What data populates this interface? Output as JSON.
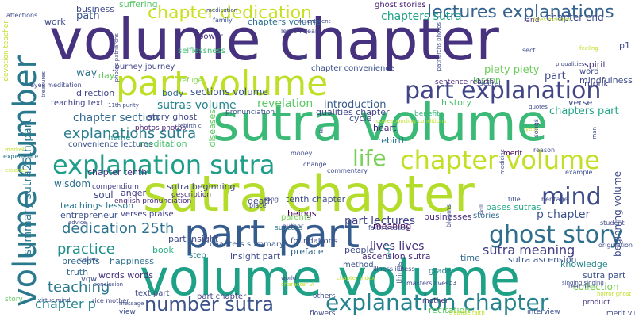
{
  "words": [
    {
      "text": "volume chapter",
      "color": "#46327e"
    },
    {
      "text": "sutra volume",
      "color": "#3aba76"
    },
    {
      "text": "sutra chapter",
      "color": "#b3dc2b"
    },
    {
      "text": "volume volume",
      "color": "#1fa187"
    },
    {
      "text": "part volume",
      "color": "#bddf26"
    },
    {
      "text": "part part",
      "color": "#365c8d"
    },
    {
      "text": "volume number",
      "color": "#2a788e"
    },
    {
      "text": "explanation sutra",
      "color": "#1f9e89"
    },
    {
      "text": "part explanation",
      "color": "#414487"
    },
    {
      "text": "chapter volume",
      "color": "#c2df23"
    },
    {
      "text": "ghost story",
      "color": "#2e6f8e"
    },
    {
      "text": "explanation chapter",
      "color": "#25838e"
    },
    {
      "text": "chapter dedication",
      "color": "#c8e020"
    },
    {
      "text": "lectures explanations",
      "color": "#33628d"
    },
    {
      "text": "number sutra",
      "color": "#3b528b"
    },
    {
      "text": "mind",
      "color": "#3e4989"
    },
    {
      "text": "life",
      "color": "#75d054"
    },
    {
      "text": "sutra meaning",
      "color": "#433e85"
    },
    {
      "text": "dedication 25th",
      "color": "#2c728e"
    },
    {
      "text": "explanations sutra",
      "color": "#287d8e"
    },
    {
      "text": "practice",
      "color": "#21918c"
    },
    {
      "text": "teaching",
      "color": "#2a788e"
    },
    {
      "text": "chapter p",
      "color": "#23888e"
    },
    {
      "text": "p chapter",
      "color": "#3b528b"
    },
    {
      "text": "summary sutra25th part",
      "color": "#2a788e"
    },
    {
      "text": "sutras volume",
      "color": "#25848e"
    },
    {
      "text": "chapter section",
      "color": "#31688e"
    },
    {
      "text": "part lectures",
      "color": "#424086"
    },
    {
      "text": "lives lives",
      "color": "#46307e"
    },
    {
      "text": "ascension sutra",
      "color": "#472d7b"
    },
    {
      "text": "sutra ascension",
      "color": "#39558c"
    },
    {
      "text": "chapters sutra",
      "color": "#1fa088"
    },
    {
      "text": "chapter end",
      "color": "#3e4c8a"
    },
    {
      "text": "chapters volume",
      "color": "#2d708e"
    },
    {
      "text": "sections volume",
      "color": "#3a548c"
    },
    {
      "text": "revelation",
      "color": "#5ac864"
    },
    {
      "text": "introduction",
      "color": "#365c8d"
    },
    {
      "text": "qualities chapter",
      "color": "#404688"
    },
    {
      "text": "history",
      "color": "#4ac16d"
    },
    {
      "text": "chapter convenience",
      "color": "#3b518b"
    },
    {
      "text": "piety piety",
      "color": "#6ccd5a"
    },
    {
      "text": "lesson",
      "color": "#5ec962"
    },
    {
      "text": "part",
      "color": "#3e4a89"
    },
    {
      "text": "chapters part",
      "color": "#20a486"
    },
    {
      "text": "verse",
      "color": "#3f4889"
    },
    {
      "text": "monk",
      "color": "#414487"
    },
    {
      "text": "business",
      "color": "#3e4989"
    },
    {
      "text": "suffering",
      "color": "#56c667"
    },
    {
      "text": "path",
      "color": "#39558c"
    },
    {
      "text": "work",
      "color": "#3e4a89"
    },
    {
      "text": "ghost stories",
      "color": "#482475"
    },
    {
      "text": "way",
      "color": "#2c728e"
    },
    {
      "text": "day",
      "color": "#65cb5e"
    },
    {
      "text": "direction",
      "color": "#414487"
    },
    {
      "text": "teaching text",
      "color": "#414487"
    },
    {
      "text": "cycle",
      "color": "#3f4889"
    },
    {
      "text": "heart",
      "color": "#482878"
    },
    {
      "text": "rebirth",
      "color": "#2b758e"
    },
    {
      "text": "benefits",
      "color": "#35b779"
    },
    {
      "text": "story ghost",
      "color": "#404688"
    },
    {
      "text": "meditation",
      "color": "#4ac16d"
    },
    {
      "text": "convenience lectures",
      "color": "#3b518b"
    },
    {
      "text": "name",
      "color": "#21918c"
    },
    {
      "text": "chapter tenth",
      "color": "#46337f"
    },
    {
      "text": "tenth chapter",
      "color": "#3e4a89"
    },
    {
      "text": "sutra beginning",
      "color": "#3f4889"
    },
    {
      "text": "description",
      "color": "#472f7d"
    },
    {
      "text": "death",
      "color": "#414487"
    },
    {
      "text": "wisdom",
      "color": "#2e6e8e"
    },
    {
      "text": "compendium",
      "color": "#424086"
    },
    {
      "text": "english pronunciation",
      "color": "#482878"
    },
    {
      "text": "soul",
      "color": "#3f4889"
    },
    {
      "text": "anger",
      "color": "#453882"
    },
    {
      "text": "teachings lesson",
      "color": "#2a788e"
    },
    {
      "text": "entrepreneur",
      "color": "#3b528b"
    },
    {
      "text": "verses praise",
      "color": "#424086"
    },
    {
      "text": "beings",
      "color": "#440154"
    },
    {
      "text": "businesses",
      "color": "#472c7a"
    },
    {
      "text": "stories",
      "color": "#31688e"
    },
    {
      "text": "meaning",
      "color": "#440154"
    },
    {
      "text": "bases sutras",
      "color": "#22a884"
    },
    {
      "text": "part insight",
      "color": "#3f4889"
    },
    {
      "text": "precepts",
      "color": "#31688e"
    },
    {
      "text": "chapters summary",
      "color": "#38588c"
    },
    {
      "text": "insight part",
      "color": "#3e4a89"
    },
    {
      "text": "preface",
      "color": "#31688e"
    },
    {
      "text": "foundations",
      "color": "#3b528b"
    },
    {
      "text": "people",
      "color": "#3f4889"
    },
    {
      "text": "book",
      "color": "#27ad81"
    },
    {
      "text": "step",
      "color": "#25848e"
    },
    {
      "text": "sales",
      "color": "#39558c"
    },
    {
      "text": "happiness",
      "color": "#2d708e"
    },
    {
      "text": "truth",
      "color": "#31688e"
    },
    {
      "text": "words words",
      "color": "#46327e"
    },
    {
      "text": "vow",
      "color": "#3e4c8a"
    },
    {
      "text": "text part",
      "color": "#3e4a89"
    },
    {
      "text": "part chapter",
      "color": "#424086"
    },
    {
      "text": "method",
      "color": "#3b528b"
    },
    {
      "text": "grade",
      "color": "#26828e"
    },
    {
      "text": "recitation",
      "color": "#5ec962"
    },
    {
      "text": "time",
      "color": "#31688e"
    },
    {
      "text": "knowledge",
      "color": "#24868e"
    },
    {
      "text": "collection",
      "color": "#75d054"
    },
    {
      "text": "sutra part",
      "color": "#3b528b"
    },
    {
      "text": "power",
      "color": "#46307e"
    },
    {
      "text": "selflessness",
      "color": "#3fbc73"
    },
    {
      "text": "sentence rebirth",
      "color": "#482878"
    },
    {
      "text": "journey journey",
      "color": "#414487"
    },
    {
      "text": "refuge",
      "color": "#84d44b"
    },
    {
      "text": "body",
      "color": "#31688e"
    },
    {
      "text": "photos photos",
      "color": "#482878"
    },
    {
      "text": "story",
      "color": "#5ec962"
    },
    {
      "text": "interview",
      "color": "#3b528b"
    },
    {
      "text": "view",
      "color": "#3e4a89"
    },
    {
      "text": "others",
      "color": "#3b528b"
    },
    {
      "text": "flowers",
      "color": "#3f4889"
    },
    {
      "text": "product",
      "color": "#46337f"
    },
    {
      "text": "mother",
      "color": "#46327e"
    },
    {
      "text": "merit virtue",
      "color": "#3e4a89"
    },
    {
      "text": "rice mother",
      "color": "#414487"
    },
    {
      "text": "pronunciation",
      "color": "#3b518b"
    },
    {
      "text": "diseases",
      "color": "#5ec962"
    },
    {
      "text": "beginning volume",
      "color": "#3e4a89"
    },
    {
      "text": "mindfulness",
      "color": "#3e4989"
    },
    {
      "text": "p1",
      "color": "#3e4989"
    },
    {
      "text": "c",
      "color": "#31688e"
    },
    {
      "text": "spirit",
      "color": "#46307e"
    },
    {
      "text": "word",
      "color": "#3e4a89"
    },
    {
      "text": "land",
      "color": "#472d7b"
    },
    {
      "text": "merit",
      "color": "#440154"
    },
    {
      "text": "success",
      "color": "#2a788e"
    },
    {
      "text": "parents",
      "color": "#75d054"
    },
    {
      "text": "author",
      "color": "#3e4a89"
    },
    {
      "text": "things",
      "color": "#3b528b"
    },
    {
      "text": "self",
      "color": "#21918c"
    },
    {
      "text": "experience",
      "color": "#2a788e"
    },
    {
      "text": "affections",
      "color": "#3e4a89"
    },
    {
      "text": "devotion teacher",
      "color": "#bddf26"
    },
    {
      "text": "commentary",
      "color": "#3e4a89"
    },
    {
      "text": "secret",
      "color": "#3b528b"
    },
    {
      "text": "money",
      "color": "#3e4a89"
    },
    {
      "text": "example",
      "color": "#3b528b"
    },
    {
      "text": "student",
      "color": "#3e4a89"
    },
    {
      "text": "origination",
      "color": "#3e4a89"
    },
    {
      "text": "family",
      "color": "#3b528b"
    },
    {
      "text": "lesson heart",
      "color": "#414487"
    },
    {
      "text": "change",
      "color": "#3e4a89"
    },
    {
      "text": "sect",
      "color": "#3b528b"
    },
    {
      "text": "title",
      "color": "#3e4a89"
    },
    {
      "text": "reason",
      "color": "#3e4a89"
    },
    {
      "text": "eyes meditation",
      "color": "#3e4a89"
    },
    {
      "text": "virtue mind",
      "color": "#3e4a89"
    },
    {
      "text": "masters lives",
      "color": "#414487"
    },
    {
      "text": "faith treatise",
      "color": "#3e4a89"
    },
    {
      "text": "illness illness",
      "color": "#3e4a89"
    },
    {
      "text": "singing singing",
      "color": "#3e4a89"
    },
    {
      "text": "horror ghost",
      "color": "#bddf26"
    },
    {
      "text": "heritage",
      "color": "#3e4a89"
    },
    {
      "text": "teacher",
      "color": "#3e4a89"
    },
    {
      "text": "king",
      "color": "#3e4a89"
    },
    {
      "text": "place",
      "color": "#3e4a89"
    },
    {
      "text": "essence",
      "color": "#bddf26"
    },
    {
      "text": "market",
      "color": "#bddf26"
    },
    {
      "text": "conclusion",
      "color": "#3e4a89"
    },
    {
      "text": "message",
      "color": "#3e4a89"
    },
    {
      "text": "advice",
      "color": "#3e4a89"
    },
    {
      "text": "songs",
      "color": "#3e4a89"
    },
    {
      "text": "p3",
      "color": "#3e4a89"
    },
    {
      "text": "resentment",
      "color": "#3e4a89"
    },
    {
      "text": "blooms",
      "color": "#3e4a89"
    },
    {
      "text": "11th purity",
      "color": "#3e4a89"
    },
    {
      "text": "photos patriarchs",
      "color": "#3e4a89"
    },
    {
      "text": "patriarchs photos",
      "color": "#3e4a89"
    },
    {
      "text": "treasures",
      "color": "#3e4a89"
    },
    {
      "text": "medication",
      "color": "#3e4a89"
    },
    {
      "text": "quotes",
      "color": "#3e4a89"
    },
    {
      "text": "feeling",
      "color": "#bddf26"
    },
    {
      "text": "p qualities",
      "color": "#3e4a89"
    },
    {
      "text": "rebirth c",
      "color": "#3e4a89"
    },
    {
      "text": "d",
      "color": "#3e4a89"
    },
    {
      "text": "skill",
      "color": "#3e4a89"
    },
    {
      "text": "medicine",
      "color": "#3e4a89"
    },
    {
      "text": "year",
      "color": "#bddf26"
    },
    {
      "text": "lives masters",
      "color": "#bddf26"
    },
    {
      "text": "corresponding conditions",
      "color": "#bddf26"
    },
    {
      "text": "treatise faith",
      "color": "#bddf26"
    },
    {
      "text": "character vi",
      "color": "#bddf26"
    },
    {
      "text": "chapter index",
      "color": "#bddf26"
    },
    {
      "text": "world",
      "color": "#3e4a89"
    },
    {
      "text": "man",
      "color": "#3e4a89"
    }
  ]
}
